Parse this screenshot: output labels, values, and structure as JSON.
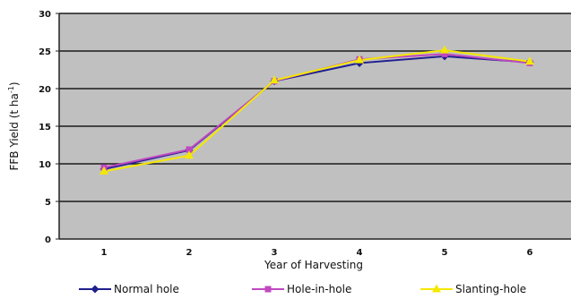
{
  "chart_data": {
    "type": "line",
    "title": "",
    "xlabel": "Year of Harvesting",
    "ylabel_main": "FFB Yield (t ha",
    "ylabel_sup": "-1",
    "ylabel_close": ")",
    "categories": [
      "1",
      "2",
      "3",
      "4",
      "5",
      "6"
    ],
    "ylim": [
      0,
      30
    ],
    "yticks": [
      "0",
      "5",
      "10",
      "15",
      "20",
      "25",
      "30"
    ],
    "grid": true,
    "legend_position": "bottom",
    "plot_background": "#c0c0c0",
    "series": [
      {
        "name": "Normal hole",
        "values": [
          9.3,
          11.8,
          21.0,
          23.4,
          24.3,
          23.5
        ],
        "color": "#1f1f8f",
        "marker": "diamond"
      },
      {
        "name": "Hole-in-hole",
        "values": [
          9.5,
          11.9,
          21.0,
          23.9,
          24.6,
          23.4
        ],
        "color": "#c048c0",
        "marker": "square"
      },
      {
        "name": "Slanting-hole",
        "values": [
          9.0,
          11.1,
          21.1,
          23.8,
          25.1,
          23.6
        ],
        "color": "#f5e800",
        "marker": "triangle"
      }
    ]
  }
}
